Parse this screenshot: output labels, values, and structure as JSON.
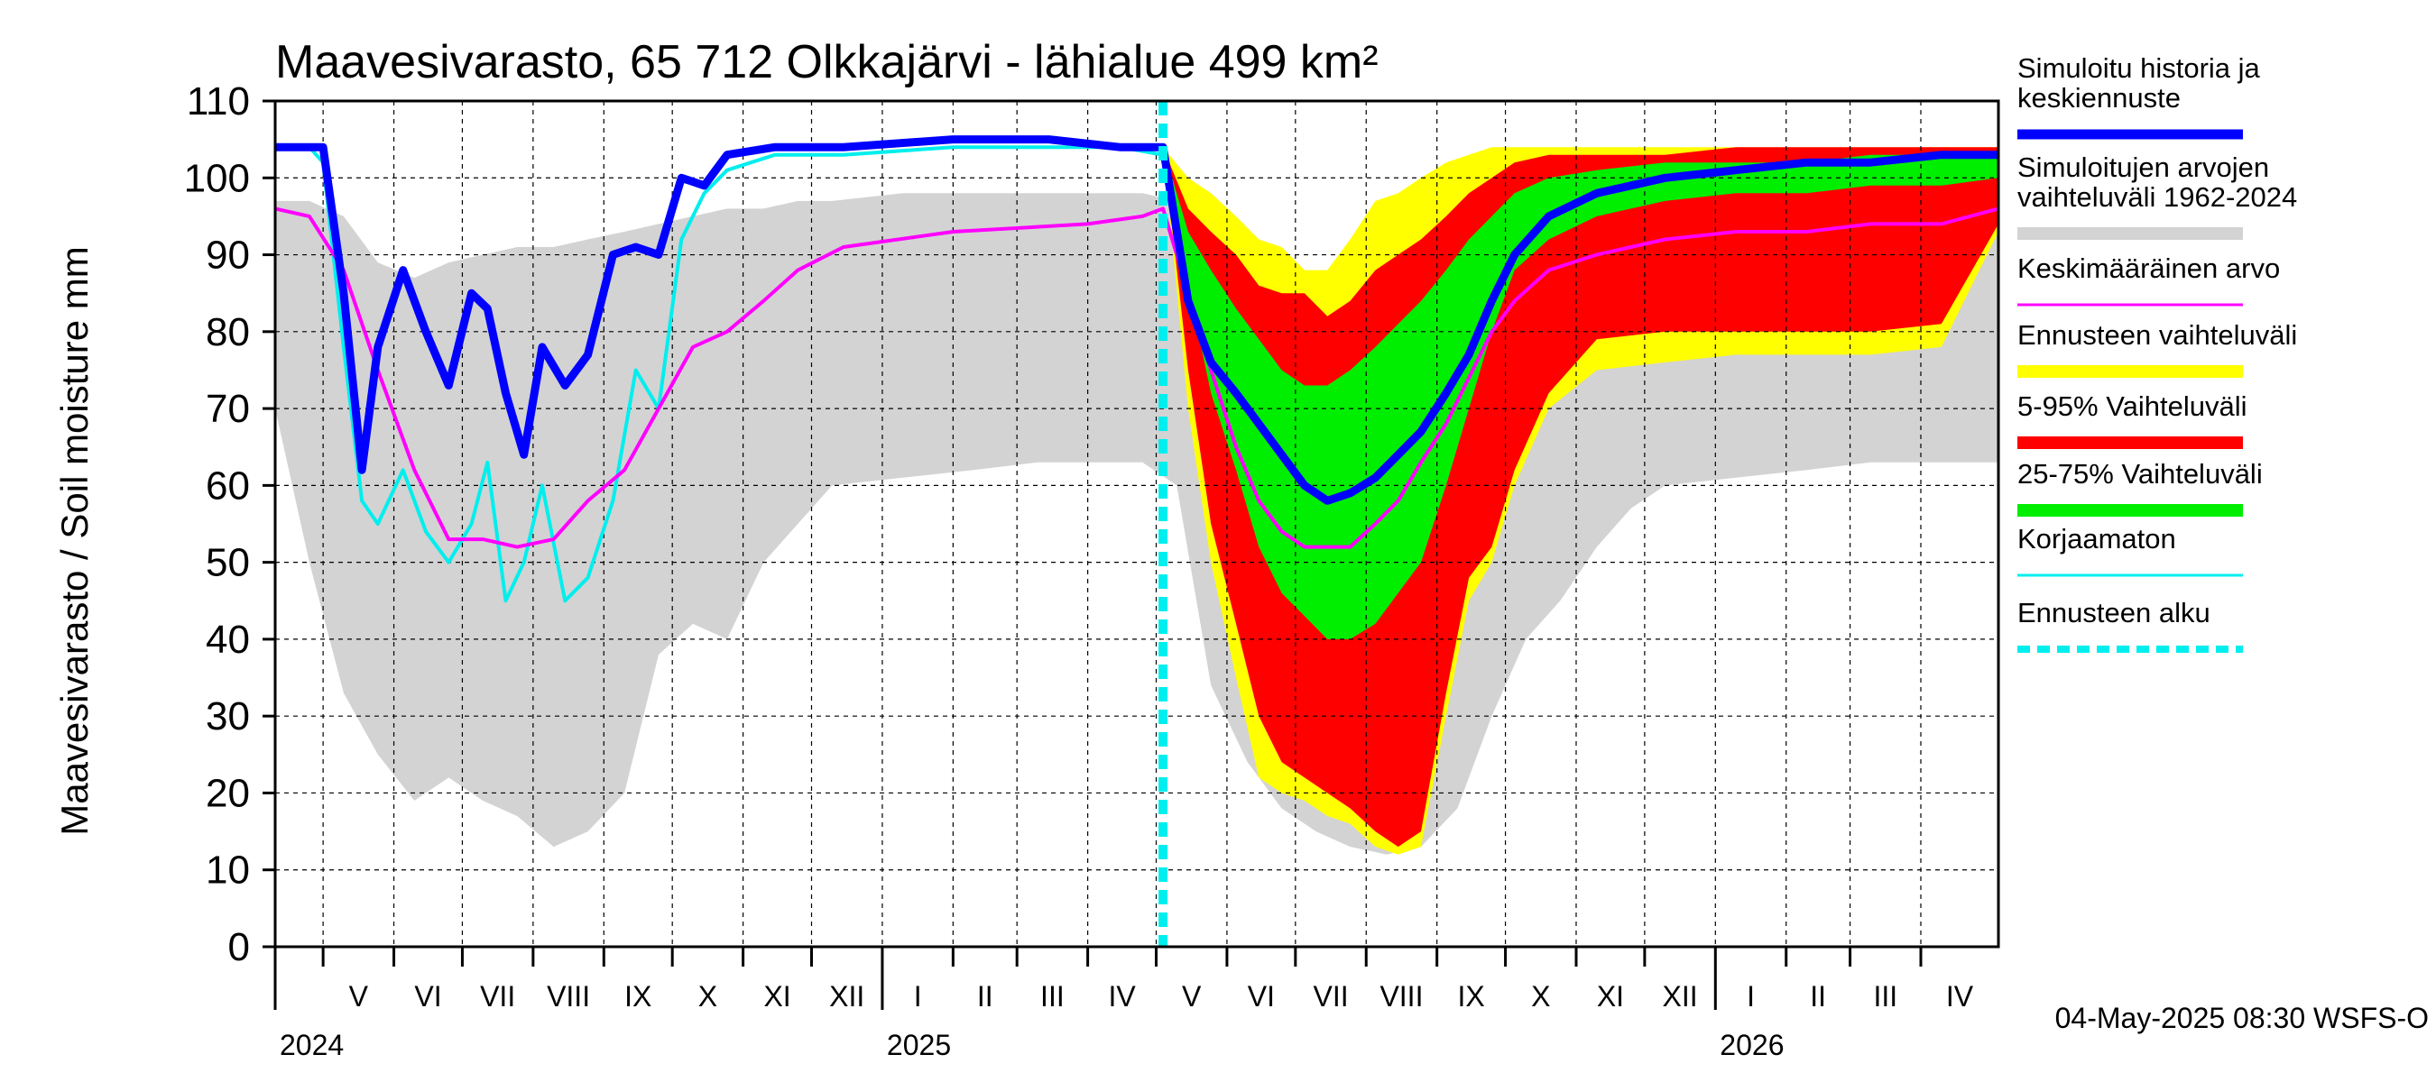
{
  "chart_data": {
    "type": "area",
    "title": "Maavesivarasto, 65 712 Olkkajärvi - lähialue 499 km²",
    "ylabel": "Maavesivarasto / Soil moisture   mm",
    "ylim": [
      0,
      110
    ],
    "yticks": [
      0,
      10,
      20,
      30,
      40,
      50,
      60,
      70,
      80,
      90,
      100,
      110
    ],
    "x_start": "2024-04-10",
    "x_end": "2026-05-05",
    "forecast_start": "2025-05-04",
    "grid": true,
    "months": [
      {
        "label": "V",
        "start": "2024-05-01"
      },
      {
        "label": "VI",
        "start": "2024-06-01"
      },
      {
        "label": "VII",
        "start": "2024-07-01"
      },
      {
        "label": "VIII",
        "start": "2024-08-01"
      },
      {
        "label": "IX",
        "start": "2024-09-01"
      },
      {
        "label": "X",
        "start": "2024-10-01"
      },
      {
        "label": "XI",
        "start": "2024-11-01"
      },
      {
        "label": "XII",
        "start": "2024-12-01"
      },
      {
        "label": "I",
        "start": "2025-01-01"
      },
      {
        "label": "II",
        "start": "2025-02-01"
      },
      {
        "label": "III",
        "start": "2025-03-01"
      },
      {
        "label": "IV",
        "start": "2025-04-01"
      },
      {
        "label": "V",
        "start": "2025-05-01"
      },
      {
        "label": "VI",
        "start": "2025-06-01"
      },
      {
        "label": "VII",
        "start": "2025-07-01"
      },
      {
        "label": "VIII",
        "start": "2025-08-01"
      },
      {
        "label": "IX",
        "start": "2025-09-01"
      },
      {
        "label": "X",
        "start": "2025-10-01"
      },
      {
        "label": "XI",
        "start": "2025-11-01"
      },
      {
        "label": "XII",
        "start": "2025-12-01"
      },
      {
        "label": "I",
        "start": "2026-01-01"
      },
      {
        "label": "II",
        "start": "2026-02-01"
      },
      {
        "label": "III",
        "start": "2026-03-01"
      },
      {
        "label": "IV",
        "start": "2026-04-01"
      }
    ],
    "years": [
      {
        "label": "2024",
        "date": "2024-04-10"
      },
      {
        "label": "2025",
        "date": "2025-01-01"
      },
      {
        "label": "2026",
        "date": "2026-01-01"
      }
    ],
    "legend": [
      {
        "label": "Simuloitu historia ja keskiennuste",
        "color": "#0000ff"
      },
      {
        "label": "Simuloitujen arvojen vaihteluväli 1962-2024",
        "color": "#d3d3d3"
      },
      {
        "label": "Keskimääräinen arvo",
        "color": "#ff00ff"
      },
      {
        "label": "Ennusteen vaihteluväli",
        "color": "#ffff00"
      },
      {
        "label": "5-95% Vaihteluväli",
        "color": "#ff0000"
      },
      {
        "label": "25-75% Vaihteluväli",
        "color": "#00ee00"
      },
      {
        "label": "Korjaamaton",
        "color": "#00eeee"
      },
      {
        "label": "Ennusteen alku",
        "color": "#00eeee"
      }
    ],
    "series": [
      {
        "name": "Simuloitujen arvojen vaihteluväli 1962-2024",
        "kind": "band",
        "color": "#d3d3d3",
        "x": [
          "2024-04-10",
          "2024-04-25",
          "2024-05-10",
          "2024-05-25",
          "2024-06-10",
          "2024-06-25",
          "2024-07-10",
          "2024-07-25",
          "2024-08-10",
          "2024-08-25",
          "2024-09-10",
          "2024-09-25",
          "2024-10-10",
          "2024-10-25",
          "2024-11-10",
          "2024-11-25",
          "2024-12-10",
          "2025-01-10",
          "2025-02-10",
          "2025-03-10",
          "2025-04-10",
          "2025-04-25",
          "2025-05-10",
          "2025-05-25",
          "2025-06-10",
          "2025-06-25",
          "2025-07-10",
          "2025-07-25",
          "2025-08-10",
          "2025-08-25",
          "2025-09-10",
          "2025-09-25",
          "2025-10-10",
          "2025-10-25",
          "2025-11-10",
          "2025-11-25",
          "2025-12-10",
          "2026-01-10",
          "2026-02-10",
          "2026-03-10",
          "2026-04-10",
          "2026-05-05"
        ],
        "low": [
          70,
          50,
          33,
          25,
          19,
          22,
          19,
          17,
          13,
          15,
          20,
          38,
          42,
          40,
          50,
          55,
          60,
          61,
          62,
          63,
          63,
          63,
          60,
          34,
          24,
          18,
          15,
          13,
          12,
          13,
          18,
          30,
          40,
          45,
          52,
          57,
          60,
          61,
          62,
          63,
          63,
          63
        ],
        "high": [
          97,
          97,
          95,
          89,
          87,
          89,
          90,
          91,
          91,
          92,
          93,
          94,
          95,
          96,
          96,
          97,
          97,
          98,
          98,
          98,
          98,
          98,
          97,
          92,
          85,
          82,
          83,
          85,
          87,
          90,
          93,
          95,
          96,
          97,
          97,
          97,
          97,
          98,
          98,
          98,
          98,
          98
        ]
      },
      {
        "name": "Ennusteen vaihteluväli",
        "kind": "band",
        "color": "#ffff00",
        "x": [
          "2025-05-04",
          "2025-05-15",
          "2025-05-25",
          "2025-06-05",
          "2025-06-15",
          "2025-06-25",
          "2025-07-05",
          "2025-07-15",
          "2025-07-25",
          "2025-08-05",
          "2025-08-15",
          "2025-08-25",
          "2025-09-05",
          "2025-09-15",
          "2025-09-25",
          "2025-10-05",
          "2025-10-20",
          "2025-11-10",
          "2025-12-10",
          "2026-01-10",
          "2026-02-10",
          "2026-03-10",
          "2026-04-10",
          "2026-05-05"
        ],
        "low": [
          104,
          70,
          50,
          35,
          22,
          20,
          19,
          17,
          16,
          13,
          12,
          13,
          30,
          45,
          50,
          60,
          70,
          75,
          76,
          77,
          77,
          77,
          78,
          93
        ],
        "high": [
          104,
          100,
          98,
          95,
          92,
          91,
          88,
          88,
          92,
          97,
          98,
          100,
          102,
          103,
          104,
          104,
          104,
          104,
          104,
          104,
          104,
          104,
          104,
          104
        ]
      },
      {
        "name": "5-95% Vaihteluväli",
        "kind": "band",
        "color": "#ff0000",
        "x": [
          "2025-05-04",
          "2025-05-15",
          "2025-05-25",
          "2025-06-05",
          "2025-06-15",
          "2025-06-25",
          "2025-07-05",
          "2025-07-15",
          "2025-07-25",
          "2025-08-05",
          "2025-08-15",
          "2025-08-25",
          "2025-09-05",
          "2025-09-15",
          "2025-09-25",
          "2025-10-05",
          "2025-10-20",
          "2025-11-10",
          "2025-12-10",
          "2026-01-10",
          "2026-02-10",
          "2026-03-10",
          "2026-04-10",
          "2026-05-05"
        ],
        "low": [
          104,
          75,
          55,
          42,
          30,
          24,
          22,
          20,
          18,
          15,
          13,
          15,
          33,
          48,
          52,
          62,
          72,
          79,
          80,
          80,
          80,
          80,
          81,
          94
        ],
        "high": [
          104,
          96,
          93,
          90,
          86,
          85,
          85,
          82,
          84,
          88,
          90,
          92,
          95,
          98,
          100,
          102,
          103,
          103,
          103,
          104,
          104,
          104,
          104,
          104
        ]
      },
      {
        "name": "25-75% Vaihteluväli",
        "kind": "band",
        "color": "#00ee00",
        "x": [
          "2025-05-04",
          "2025-05-15",
          "2025-05-25",
          "2025-06-05",
          "2025-06-15",
          "2025-06-25",
          "2025-07-05",
          "2025-07-15",
          "2025-07-25",
          "2025-08-05",
          "2025-08-15",
          "2025-08-25",
          "2025-09-05",
          "2025-09-15",
          "2025-09-25",
          "2025-10-05",
          "2025-10-20",
          "2025-11-10",
          "2025-12-10",
          "2026-01-10",
          "2026-02-10",
          "2026-03-10",
          "2026-04-10",
          "2026-05-05"
        ],
        "low": [
          104,
          86,
          72,
          62,
          52,
          46,
          43,
          40,
          40,
          42,
          46,
          50,
          60,
          70,
          80,
          88,
          92,
          95,
          97,
          98,
          98,
          99,
          99,
          100
        ],
        "high": [
          104,
          93,
          88,
          83,
          79,
          75,
          73,
          73,
          75,
          78,
          81,
          84,
          88,
          92,
          95,
          98,
          100,
          101,
          102,
          102,
          102,
          103,
          103,
          103
        ]
      },
      {
        "name": "Simuloitu historia ja keskiennuste",
        "kind": "line",
        "color": "#0000ff",
        "x": [
          "2024-04-10",
          "2024-04-25",
          "2024-05-01",
          "2024-05-10",
          "2024-05-18",
          "2024-05-25",
          "2024-06-05",
          "2024-06-15",
          "2024-06-25",
          "2024-07-05",
          "2024-07-12",
          "2024-07-20",
          "2024-07-28",
          "2024-08-05",
          "2024-08-15",
          "2024-08-25",
          "2024-09-05",
          "2024-09-15",
          "2024-09-25",
          "2024-10-05",
          "2024-10-15",
          "2024-10-25",
          "2024-11-15",
          "2024-12-15",
          "2025-02-01",
          "2025-03-15",
          "2025-04-15",
          "2025-05-04",
          "2025-05-15",
          "2025-05-25",
          "2025-06-05",
          "2025-06-15",
          "2025-06-25",
          "2025-07-05",
          "2025-07-15",
          "2025-07-25",
          "2025-08-05",
          "2025-08-15",
          "2025-08-25",
          "2025-09-05",
          "2025-09-15",
          "2025-09-25",
          "2025-10-05",
          "2025-10-20",
          "2025-11-10",
          "2025-12-10",
          "2026-01-10",
          "2026-02-10",
          "2026-03-10",
          "2026-04-10",
          "2026-05-05"
        ],
        "values": [
          104,
          104,
          104,
          85,
          62,
          78,
          88,
          80,
          73,
          85,
          83,
          72,
          64,
          78,
          73,
          77,
          90,
          91,
          90,
          100,
          99,
          103,
          104,
          104,
          105,
          105,
          104,
          104,
          84,
          76,
          72,
          68,
          64,
          60,
          58,
          59,
          61,
          64,
          67,
          72,
          77,
          84,
          90,
          95,
          98,
          100,
          101,
          102,
          102,
          103,
          103
        ]
      },
      {
        "name": "Keskimääräinen arvo",
        "kind": "line",
        "color": "#ff00ff",
        "x": [
          "2024-04-10",
          "2024-04-25",
          "2024-05-10",
          "2024-05-25",
          "2024-06-10",
          "2024-06-25",
          "2024-07-10",
          "2024-07-25",
          "2024-08-10",
          "2024-08-25",
          "2024-09-10",
          "2024-09-25",
          "2024-10-10",
          "2024-10-25",
          "2024-11-10",
          "2024-11-25",
          "2024-12-15",
          "2025-02-01",
          "2025-04-01",
          "2025-04-25",
          "2025-05-04",
          "2025-05-15",
          "2025-05-25",
          "2025-06-05",
          "2025-06-15",
          "2025-06-25",
          "2025-07-05",
          "2025-07-15",
          "2025-07-25",
          "2025-08-05",
          "2025-08-15",
          "2025-08-25",
          "2025-09-05",
          "2025-09-15",
          "2025-09-25",
          "2025-10-05",
          "2025-10-20",
          "2025-11-10",
          "2025-12-10",
          "2026-01-10",
          "2026-02-10",
          "2026-03-10",
          "2026-04-10",
          "2026-05-05"
        ],
        "values": [
          96,
          95,
          88,
          75,
          62,
          53,
          53,
          52,
          53,
          58,
          62,
          70,
          78,
          80,
          84,
          88,
          91,
          93,
          94,
          95,
          96,
          85,
          75,
          65,
          58,
          54,
          52,
          52,
          52,
          55,
          58,
          63,
          68,
          74,
          80,
          84,
          88,
          90,
          92,
          93,
          93,
          94,
          94,
          96
        ]
      },
      {
        "name": "Korjaamaton",
        "kind": "line",
        "color": "#00eeee",
        "x": [
          "2024-04-10",
          "2024-04-25",
          "2024-05-01",
          "2024-05-10",
          "2024-05-18",
          "2024-05-25",
          "2024-06-05",
          "2024-06-15",
          "2024-06-25",
          "2024-07-05",
          "2024-07-12",
          "2024-07-20",
          "2024-07-28",
          "2024-08-05",
          "2024-08-15",
          "2024-08-25",
          "2024-09-05",
          "2024-09-15",
          "2024-09-25",
          "2024-10-05",
          "2024-10-15",
          "2024-10-25",
          "2024-11-15",
          "2024-12-15",
          "2025-02-01",
          "2025-03-15",
          "2025-04-15",
          "2025-05-04"
        ],
        "values": [
          104,
          104,
          102,
          78,
          58,
          55,
          62,
          54,
          50,
          55,
          63,
          45,
          50,
          60,
          45,
          48,
          58,
          75,
          70,
          92,
          98,
          101,
          103,
          103,
          104,
          104,
          104,
          103
        ]
      }
    ]
  },
  "footer": "04-May-2025 08:30 WSFS-O"
}
